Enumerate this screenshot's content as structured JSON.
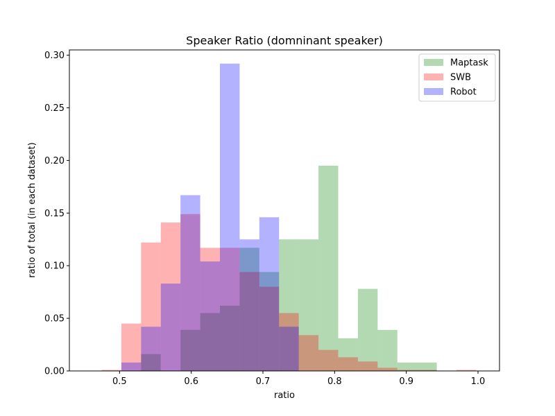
{
  "chart_data": {
    "type": "bar",
    "title": "Speaker Ratio (domninant speaker)",
    "xlabel": "ratio",
    "ylabel": "ratio of total (in each dataset)",
    "xlim": [
      0.43,
      1.03
    ],
    "ylim": [
      0.0,
      0.305
    ],
    "xticks": [
      "0.5",
      "0.6",
      "0.7",
      "0.8",
      "0.9",
      "1.0"
    ],
    "yticks": [
      "0.00",
      "0.05",
      "0.10",
      "0.15",
      "0.20",
      "0.25",
      "0.30"
    ],
    "bin_edges": [
      0.475,
      0.5025,
      0.53,
      0.5575,
      0.585,
      0.6125,
      0.64,
      0.6675,
      0.695,
      0.7225,
      0.75,
      0.7775,
      0.805,
      0.8325,
      0.86,
      0.8875,
      0.915,
      0.9425,
      0.97,
      0.9975
    ],
    "legend_position": "top-right",
    "grid": false,
    "series": [
      {
        "name": "Maptask",
        "color": "#008000",
        "alpha": 0.3,
        "values": [
          0.0,
          0.0,
          0.016,
          0.0,
          0.039,
          0.055,
          0.062,
          0.117,
          0.094,
          0.125,
          0.125,
          0.195,
          0.031,
          0.078,
          0.039,
          0.008,
          0.008,
          0.0,
          0.0
        ]
      },
      {
        "name": "SWB",
        "color": "#ff0000",
        "alpha": 0.3,
        "values": [
          0.001,
          0.045,
          0.122,
          0.141,
          0.149,
          0.117,
          0.117,
          0.094,
          0.08,
          0.055,
          0.034,
          0.02,
          0.013,
          0.009,
          0.003,
          0.001,
          0.001,
          0.0,
          0.001
        ]
      },
      {
        "name": "Robot",
        "color": "#0000ff",
        "alpha": 0.3,
        "values": [
          0.0,
          0.008,
          0.042,
          0.083,
          0.167,
          0.104,
          0.292,
          0.125,
          0.146,
          0.042,
          0.0,
          0.0,
          0.0,
          0.0,
          0.0,
          0.0,
          0.0,
          0.0,
          0.0
        ]
      }
    ]
  }
}
